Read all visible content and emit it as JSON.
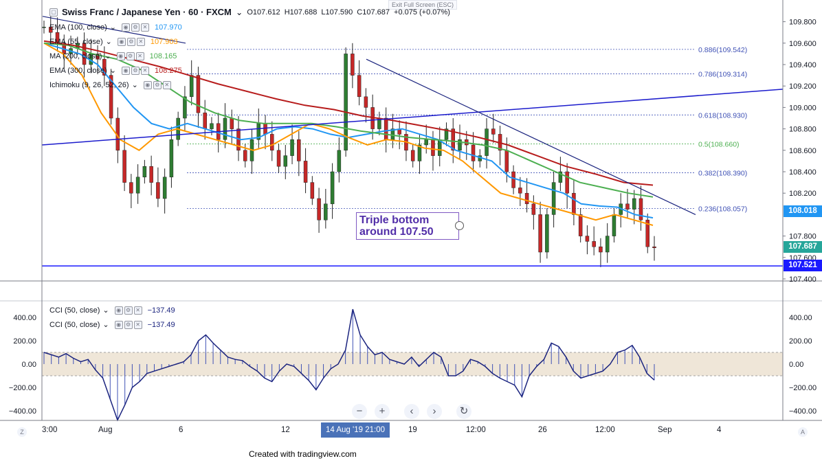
{
  "header": {
    "symbol": "Swiss Franc / Japanese Yen · 60 · FXCM",
    "open": "O107.612",
    "high": "H107.688",
    "low": "L107.590",
    "close": "C107.687",
    "change": "+0.075 (+0.07%)",
    "exit_fullscreen": "Exit Full Screen (ESC)"
  },
  "legend": [
    {
      "label": "EMA (100, close)",
      "value": "107.970",
      "color": "#2196f3"
    },
    {
      "label": "EMA (55, close)",
      "value": "107.903",
      "color": "#ff9800"
    },
    {
      "label": "MA (200, close)",
      "value": "108.165",
      "color": "#4caf50"
    },
    {
      "label": "EMA (300, close)",
      "value": "108.275",
      "color": "#b71c1c"
    },
    {
      "label": "Ichimoku (9, 26, 52, 26)",
      "value": "",
      "color": "#2196f3"
    }
  ],
  "cci_legend": [
    {
      "label": "CCI (50, close)",
      "value": "−137.49",
      "color": "#1a237e"
    },
    {
      "label": "CCI (50, close)",
      "value": "−137.49",
      "color": "#1a237e"
    }
  ],
  "annotation": {
    "line1": "Triple bottom",
    "line2": "around 107.50"
  },
  "price_tags": [
    {
      "text": "108.018",
      "color": "#2196f3"
    },
    {
      "text": "107.687",
      "color": "#26a69a"
    },
    {
      "text": "107.521",
      "color": "#1a1aff"
    }
  ],
  "x_axis": {
    "labels": [
      "3:00",
      "Aug",
      "6",
      "12",
      "19",
      "12:00",
      "26",
      "12:00",
      "Sep",
      "4"
    ],
    "highlight": "14 Aug '19   21:00"
  },
  "controls": {
    "zoom_out": "−",
    "zoom_in": "+",
    "scroll_left": "‹",
    "scroll_right": "›",
    "reset": "↻",
    "z": "Z",
    "a": "A"
  },
  "footer": "Created with tradingview.com",
  "chart_data": [
    {
      "type": "line",
      "title": "Swiss Franc / Japanese Yen · 60 · FXCM",
      "ylim": [
        107.4,
        109.9
      ],
      "y_ticks": [
        109.8,
        109.6,
        109.4,
        109.2,
        109.0,
        108.8,
        108.6,
        108.4,
        108.2,
        107.8,
        107.6,
        107.4
      ],
      "grid": false,
      "candles_close": [
        109.75,
        109.7,
        109.6,
        109.5,
        109.55,
        109.6,
        109.4,
        109.5,
        109.45,
        109.3,
        108.9,
        108.6,
        108.3,
        108.2,
        108.35,
        108.45,
        108.3,
        108.15,
        108.35,
        108.7,
        108.9,
        109.1,
        109.3,
        108.95,
        108.8,
        108.85,
        108.7,
        108.9,
        108.8,
        108.6,
        108.5,
        108.7,
        108.85,
        108.75,
        108.6,
        108.45,
        108.55,
        108.7,
        108.5,
        108.3,
        108.15,
        107.95,
        108.1,
        108.4,
        108.6,
        109.5,
        109.3,
        109.1,
        109.0,
        108.8,
        108.9,
        108.7,
        108.8,
        108.75,
        108.6,
        108.5,
        108.65,
        108.7,
        108.55,
        108.7,
        108.8,
        108.6,
        108.7,
        108.65,
        108.5,
        108.55,
        108.8,
        108.75,
        108.6,
        108.4,
        108.25,
        108.2,
        108.1,
        108.0,
        107.65,
        108.0,
        108.3,
        108.4,
        108.2,
        108.0,
        107.8,
        107.75,
        107.7,
        107.65,
        107.8,
        108.0,
        108.1,
        108.05,
        108.15,
        107.95,
        107.7,
        107.69
      ],
      "series": [
        {
          "name": "EMA (100, close)",
          "values": [
            109.6,
            109.55,
            109.5,
            109.4,
            109.2,
            109.0,
            108.85,
            108.8,
            108.85,
            108.8,
            108.75,
            108.7,
            108.72,
            108.8,
            108.82,
            108.8,
            108.75,
            108.72,
            108.75,
            108.78,
            108.8,
            108.75,
            108.7,
            108.6,
            108.55,
            108.5,
            108.35,
            108.3,
            108.25,
            108.2,
            108.1,
            108.08,
            108.07,
            108.0,
            107.97
          ]
        },
        {
          "name": "EMA (55, close)",
          "values": [
            109.6,
            109.5,
            109.3,
            108.95,
            108.7,
            108.6,
            108.75,
            108.8,
            108.75,
            108.7,
            108.65,
            108.6,
            108.65,
            108.75,
            108.85,
            108.8,
            108.72,
            108.65,
            108.7,
            108.68,
            108.62,
            108.6,
            108.5,
            108.35,
            108.2,
            108.15,
            108.1,
            108.05,
            108.0,
            107.95,
            108.0,
            107.95,
            107.9
          ]
        },
        {
          "name": "MA (200, close)",
          "values": [
            109.6,
            109.58,
            109.5,
            109.45,
            109.35,
            109.2,
            109.05,
            108.95,
            108.88,
            108.85,
            108.85,
            108.85,
            108.82,
            108.78,
            108.75,
            108.72,
            108.7,
            108.68,
            108.65,
            108.6,
            108.5,
            108.4,
            108.3,
            108.25,
            108.2,
            108.165
          ]
        },
        {
          "name": "EMA (300, close)",
          "values": [
            109.62,
            109.58,
            109.52,
            109.45,
            109.38,
            109.3,
            109.22,
            109.15,
            109.08,
            109.02,
            108.98,
            108.92,
            108.88,
            108.83,
            108.78,
            108.72,
            108.65,
            108.55,
            108.45,
            108.38,
            108.3,
            108.275
          ]
        }
      ],
      "fibonacci": [
        {
          "level": "0.886",
          "price": 109.542
        },
        {
          "level": "0.786",
          "price": 109.314
        },
        {
          "level": "0.618",
          "price": 108.93
        },
        {
          "level": "0.5",
          "price": 108.66
        },
        {
          "level": "0.382",
          "price": 108.39
        },
        {
          "level": "0.236",
          "price": 108.057
        }
      ],
      "trendlines": [
        {
          "name": "support",
          "from": 107.521,
          "to": 107.521
        },
        {
          "name": "rising",
          "from": 108.65,
          "to": 109.17
        },
        {
          "name": "falling",
          "from": 109.45,
          "to": 108.0
        }
      ]
    },
    {
      "type": "area",
      "title": "CCI (50, close)",
      "ylim": [
        -500,
        500
      ],
      "y_ticks": [
        400,
        200,
        0,
        -200,
        -400
      ],
      "band": [
        -100,
        100
      ],
      "values": [
        100,
        80,
        60,
        90,
        50,
        20,
        40,
        -50,
        -120,
        -300,
        -480,
        -350,
        -200,
        -150,
        -80,
        -60,
        -40,
        -20,
        0,
        20,
        80,
        200,
        250,
        180,
        120,
        60,
        40,
        30,
        -20,
        -60,
        -120,
        -150,
        -60,
        0,
        -20,
        -80,
        -140,
        -220,
        -120,
        -40,
        0,
        120,
        470,
        250,
        150,
        80,
        100,
        40,
        20,
        0,
        60,
        -20,
        40,
        100,
        60,
        -100,
        -100,
        -60,
        40,
        20,
        -20,
        -80,
        -120,
        -150,
        -180,
        -280,
        -100,
        -20,
        40,
        180,
        150,
        60,
        -60,
        -120,
        -100,
        -80,
        -60,
        0,
        100,
        120,
        160,
        60,
        -80,
        -137
      ]
    }
  ]
}
